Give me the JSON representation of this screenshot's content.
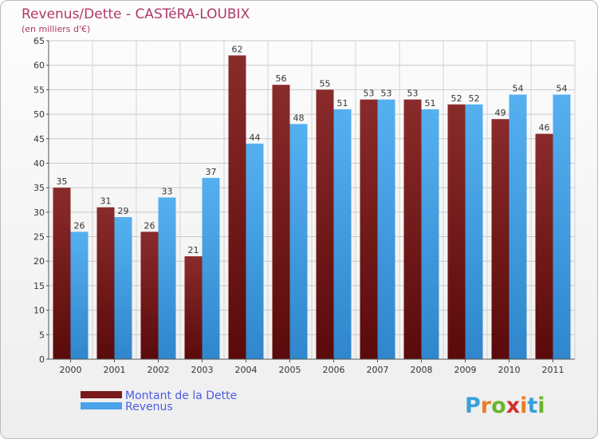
{
  "chart_data": {
    "type": "bar",
    "title": "Revenus/Dette - CASTéRA-LOUBIX",
    "subtitle": "(en milliers d'€)",
    "categories": [
      "2000",
      "2001",
      "2002",
      "2003",
      "2004",
      "2005",
      "2006",
      "2007",
      "2008",
      "2009",
      "2010",
      "2011"
    ],
    "series": [
      {
        "name": "Montant de la Dette",
        "values": [
          35,
          31,
          26,
          21,
          62,
          56,
          55,
          53,
          53,
          52,
          49,
          46
        ],
        "color": "#7a1a1a"
      },
      {
        "name": "Revenus",
        "values": [
          26,
          29,
          33,
          37,
          44,
          48,
          51,
          53,
          51,
          52,
          54,
          54
        ],
        "color": "#4aa3e8"
      }
    ],
    "ylim": [
      0,
      65
    ],
    "yticks": [
      0,
      5,
      10,
      15,
      20,
      25,
      30,
      35,
      40,
      45,
      50,
      55,
      60,
      65
    ],
    "grid": true,
    "legend_position": "bottom-left"
  },
  "branding": {
    "logo_letters": [
      "P",
      "r",
      "o",
      "x",
      "i",
      "t",
      "i"
    ],
    "logo_colors": [
      "#3a9fdc",
      "#e97d27",
      "#6ab42d",
      "#d4322f",
      "#e97d27",
      "#3a9fdc",
      "#6ab42d"
    ]
  }
}
